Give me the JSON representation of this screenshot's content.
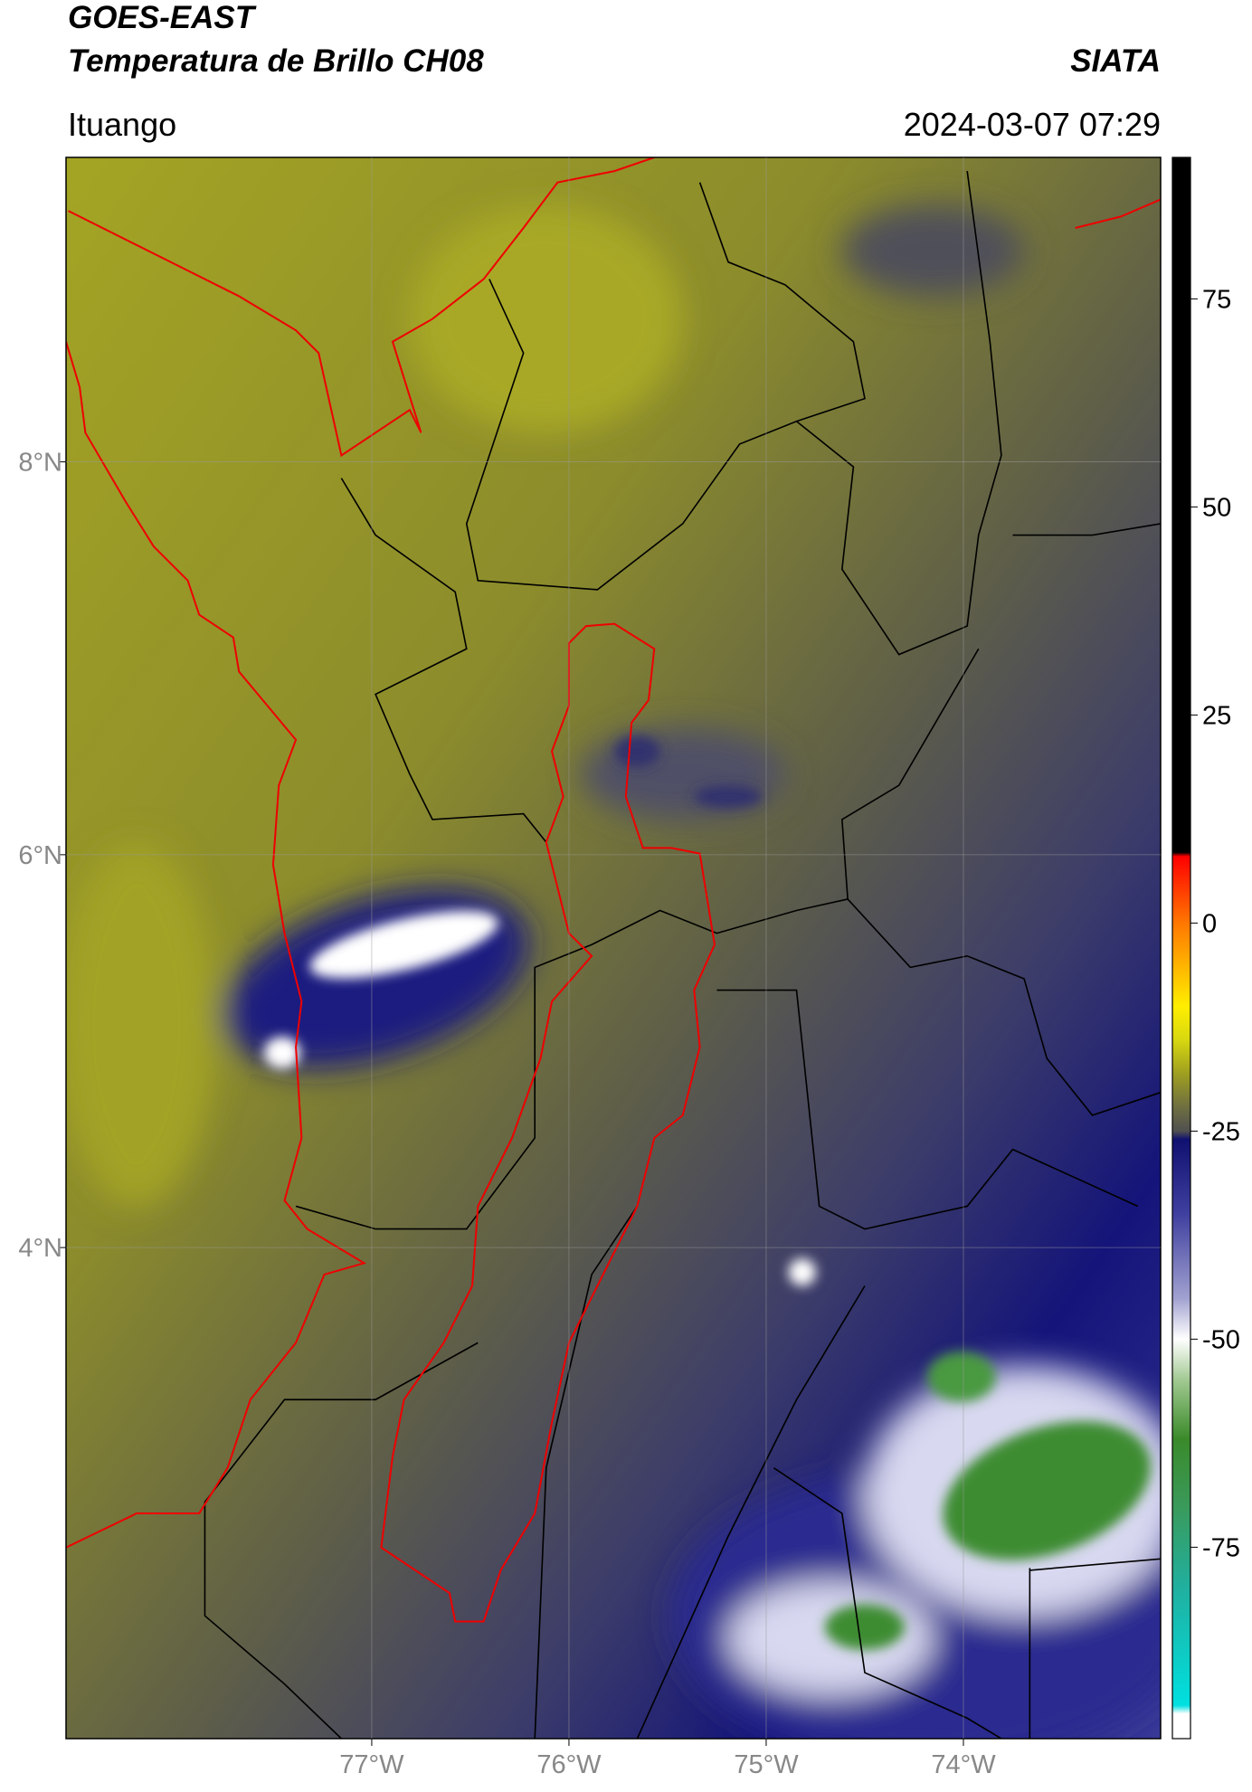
{
  "header": {
    "title": "GOES-EAST",
    "subtitle": "Temperatura de Brillo CH08",
    "brand": "SIATA",
    "location": "Ituango",
    "timestamp": "2024-03-07 07:29"
  },
  "map": {
    "xlim": [
      -78.55,
      -73
    ],
    "ylim": [
      1.5,
      9.55
    ],
    "xticks": [
      {
        "value": -77,
        "label": "77°W"
      },
      {
        "value": -76,
        "label": "76°W"
      },
      {
        "value": -75,
        "label": "75°W"
      },
      {
        "value": -74,
        "label": "74°W"
      }
    ],
    "yticks": [
      {
        "value": 4,
        "label": "4°N"
      },
      {
        "value": 6,
        "label": "6°N"
      },
      {
        "value": 8,
        "label": "8°N"
      }
    ],
    "grid": true
  },
  "colorbar": {
    "lim": [
      -98,
      92
    ],
    "ticks": [
      -75,
      -50,
      -25,
      0,
      25,
      50,
      75
    ],
    "stops": [
      {
        "value": 92,
        "color": "#000000"
      },
      {
        "value": 8.5,
        "color": "#000000"
      },
      {
        "value": 8,
        "color": "#ff0000"
      },
      {
        "value": 0,
        "color": "#ff7700"
      },
      {
        "value": -10,
        "color": "#ffee00"
      },
      {
        "value": -14,
        "color": "#d8d810"
      },
      {
        "value": -18,
        "color": "#a0a020"
      },
      {
        "value": -22,
        "color": "#707040"
      },
      {
        "value": -25,
        "color": "#505050"
      },
      {
        "value": -26,
        "color": "#101070"
      },
      {
        "value": -35,
        "color": "#4040a0"
      },
      {
        "value": -45,
        "color": "#a0a0d0"
      },
      {
        "value": -50,
        "color": "#ffffff"
      },
      {
        "value": -55,
        "color": "#a0c890"
      },
      {
        "value": -62,
        "color": "#3a8a2a"
      },
      {
        "value": -70,
        "color": "#3a9a5a"
      },
      {
        "value": -80,
        "color": "#20b0a0"
      },
      {
        "value": -94,
        "color": "#00e0e0"
      },
      {
        "value": -95,
        "color": "#ffffff"
      },
      {
        "value": -98,
        "color": "#ffffff"
      }
    ]
  }
}
